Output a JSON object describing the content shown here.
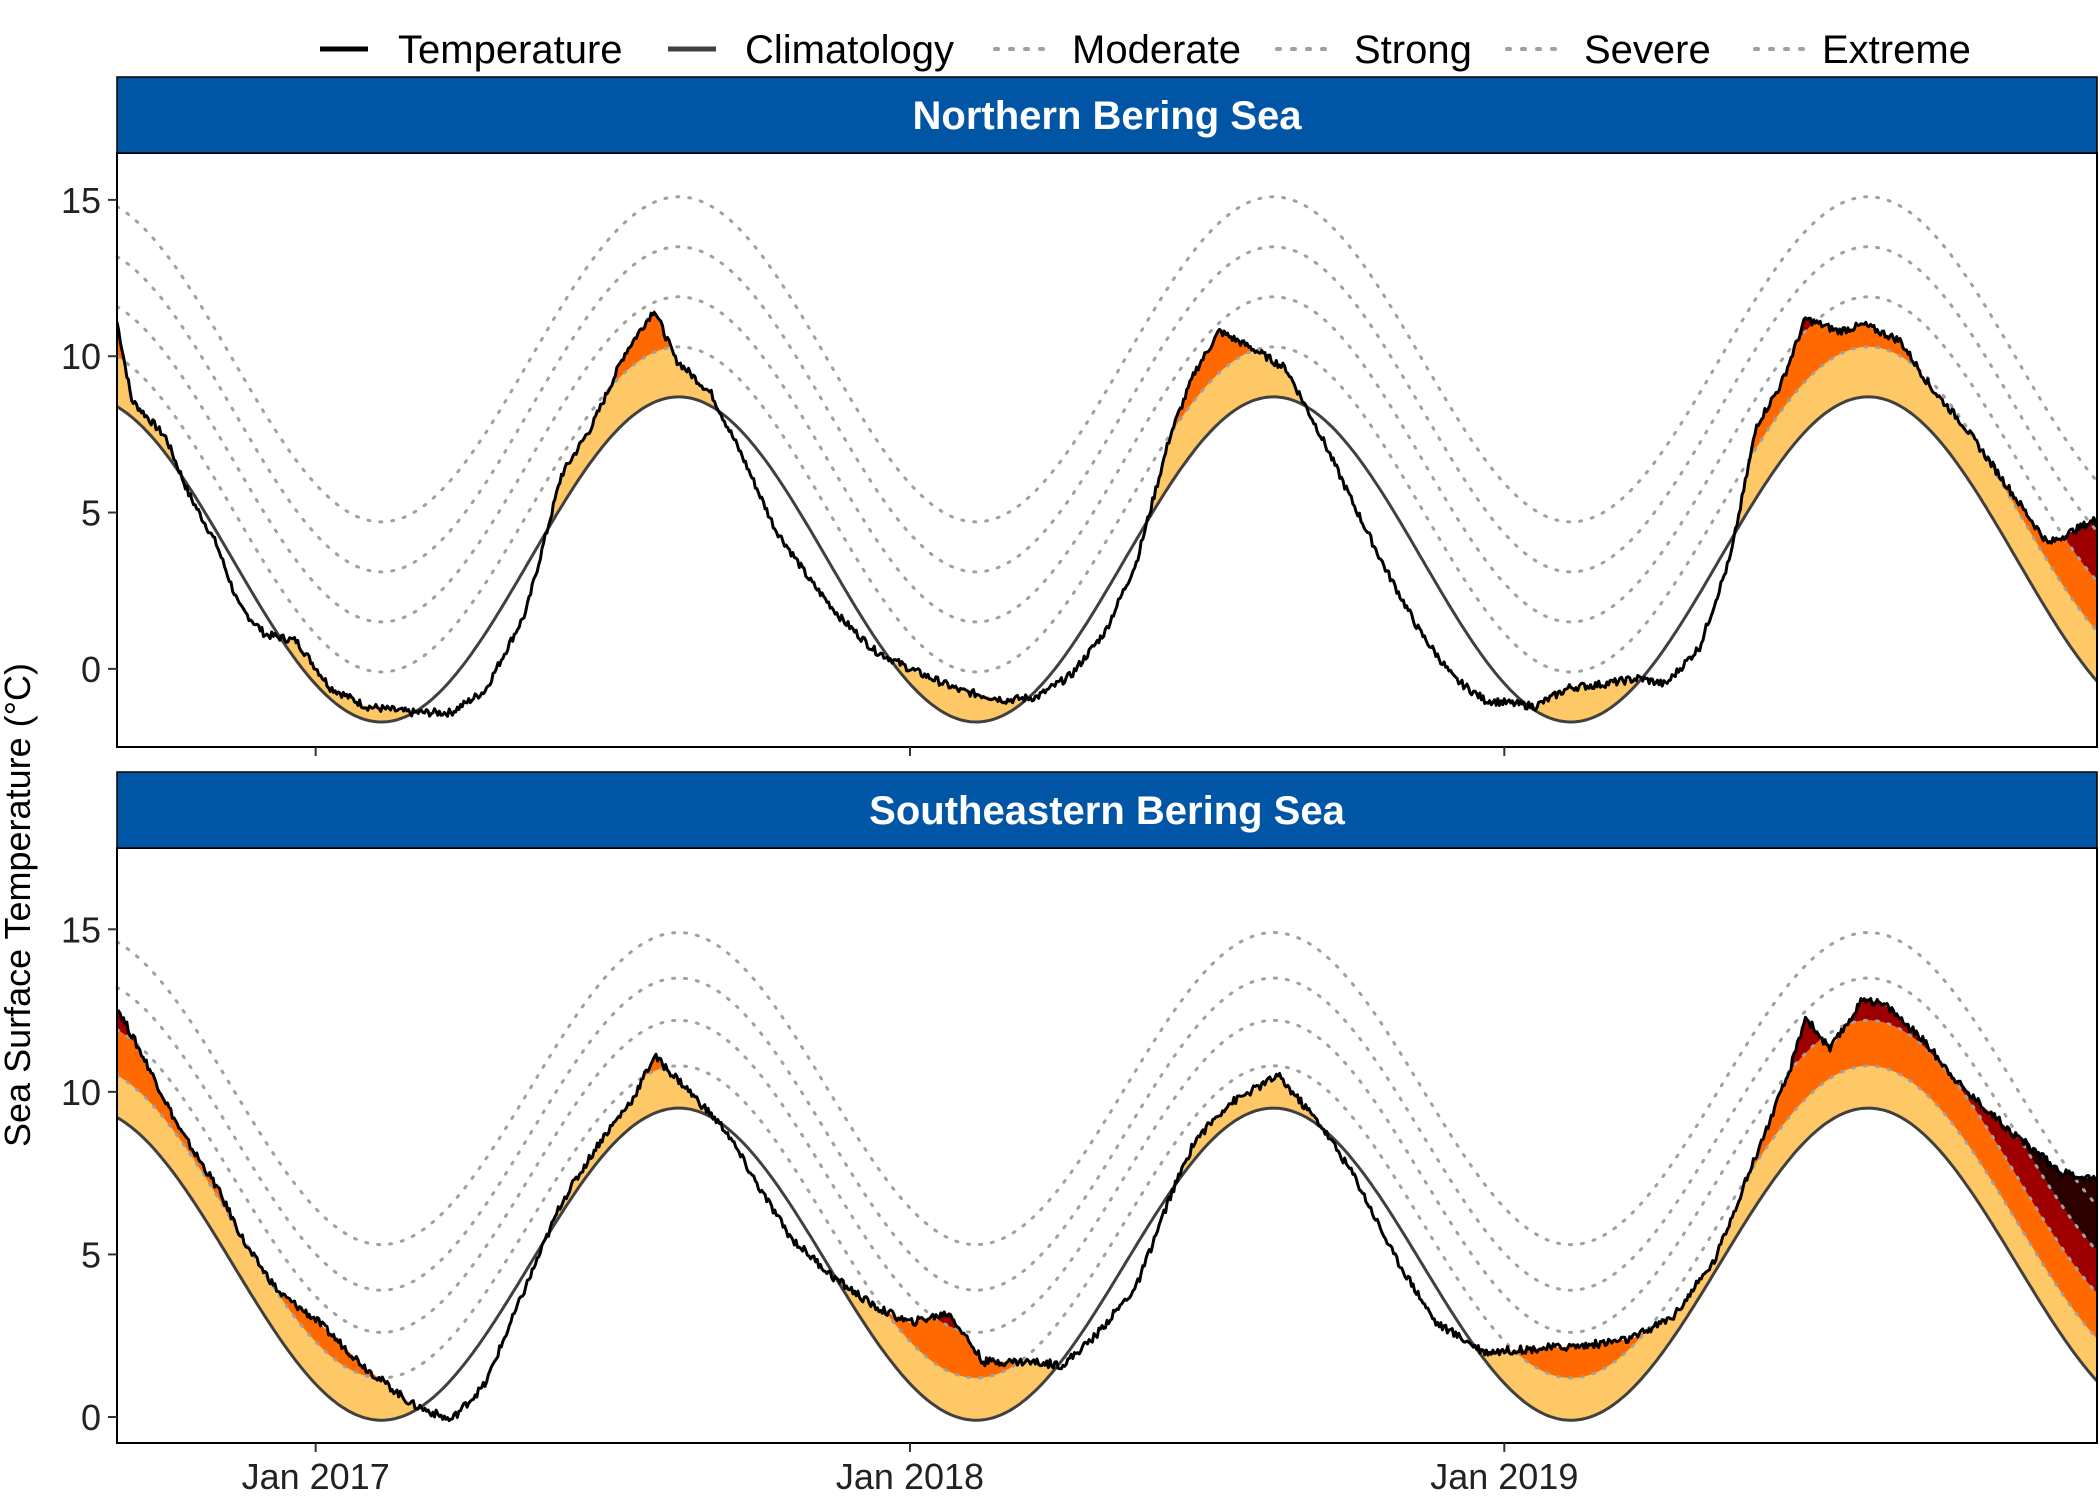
{
  "chart_data": {
    "type": "line",
    "ylabel": "Sea Surface Temperature (°C)",
    "x_ticks": [
      "Jan 2017",
      "Jan 2018",
      "Jan 2019"
    ],
    "x_tick_dates": [
      "2017-01-01",
      "2018-01-01",
      "2019-01-01"
    ],
    "xlim": [
      "2016-09-01",
      "2019-12-31"
    ],
    "y_ticks": [
      0,
      5,
      10,
      15
    ],
    "legend": {
      "position": "top",
      "entries": [
        {
          "label": "Temperature",
          "style": "solid",
          "color": "#000000"
        },
        {
          "label": "Climatology",
          "style": "solid",
          "color": "#404040"
        },
        {
          "label": "Moderate",
          "style": "dotted",
          "color": "#a0a0a0"
        },
        {
          "label": "Strong",
          "style": "dotted",
          "color": "#a0a0a0"
        },
        {
          "label": "Severe",
          "style": "dotted",
          "color": "#a0a0a0"
        },
        {
          "label": "Extreme",
          "style": "dotted",
          "color": "#a0a0a0"
        }
      ]
    },
    "category_fill_colors": {
      "Moderate": "#ffc866",
      "Strong": "#ff6900",
      "Severe": "#9e0000",
      "Extreme": "#2d0000"
    },
    "strip_color": "#0055a5",
    "panels": [
      {
        "title": "Northern Bering Sea",
        "ylim": [
          -2.5,
          16.5
        ],
        "climatology": {
          "min": -1.7,
          "max": 8.7,
          "trough_date": "2017-03-25",
          "peak_date": "2017-08-12"
        },
        "threshold_increments": {
          "Moderate": 1.6,
          "Strong": 3.2,
          "Severe": 4.8,
          "Extreme": 6.4
        },
        "temperature": [
          [
            "2016-09-01",
            11.1
          ],
          [
            "2016-09-10",
            8.6
          ],
          [
            "2016-10-01",
            7.4
          ],
          [
            "2016-10-15",
            5.6
          ],
          [
            "2016-11-01",
            4.0
          ],
          [
            "2016-11-15",
            2.0
          ],
          [
            "2016-12-01",
            1.1
          ],
          [
            "2016-12-20",
            0.9
          ],
          [
            "2017-01-10",
            -0.6
          ],
          [
            "2017-02-01",
            -1.2
          ],
          [
            "2017-03-01",
            -1.4
          ],
          [
            "2017-03-25",
            -1.4
          ],
          [
            "2017-04-15",
            -0.7
          ],
          [
            "2017-05-10",
            1.8
          ],
          [
            "2017-06-01",
            6.2
          ],
          [
            "2017-06-20",
            7.8
          ],
          [
            "2017-07-10",
            10.1
          ],
          [
            "2017-07-28",
            11.5
          ],
          [
            "2017-08-10",
            9.9
          ],
          [
            "2017-09-01",
            8.8
          ],
          [
            "2017-09-20",
            6.8
          ],
          [
            "2017-10-10",
            4.5
          ],
          [
            "2017-11-01",
            2.8
          ],
          [
            "2017-11-20",
            1.6
          ],
          [
            "2017-12-10",
            0.6
          ],
          [
            "2018-01-01",
            0.0
          ],
          [
            "2018-02-01",
            -0.7
          ],
          [
            "2018-03-01",
            -1.0
          ],
          [
            "2018-03-20",
            -0.9
          ],
          [
            "2018-04-10",
            -0.2
          ],
          [
            "2018-05-01",
            1.2
          ],
          [
            "2018-05-20",
            3.4
          ],
          [
            "2018-06-10",
            7.5
          ],
          [
            "2018-06-25",
            9.5
          ],
          [
            "2018-07-10",
            10.8
          ],
          [
            "2018-08-01",
            10.2
          ],
          [
            "2018-08-20",
            9.6
          ],
          [
            "2018-09-10",
            7.5
          ],
          [
            "2018-10-01",
            5.2
          ],
          [
            "2018-10-20",
            3.2
          ],
          [
            "2018-11-10",
            1.2
          ],
          [
            "2018-12-01",
            -0.3
          ],
          [
            "2018-12-20",
            -1.0
          ],
          [
            "2019-01-20",
            -1.2
          ],
          [
            "2019-02-10",
            -0.6
          ],
          [
            "2019-03-01",
            -0.5
          ],
          [
            "2019-03-25",
            -0.3
          ],
          [
            "2019-04-10",
            -0.5
          ],
          [
            "2019-05-01",
            0.7
          ],
          [
            "2019-05-20",
            3.6
          ],
          [
            "2019-06-05",
            7.8
          ],
          [
            "2019-06-20",
            9.1
          ],
          [
            "2019-07-05",
            11.2
          ],
          [
            "2019-07-25",
            10.8
          ],
          [
            "2019-08-10",
            11.0
          ],
          [
            "2019-09-01",
            10.5
          ],
          [
            "2019-09-20",
            9.0
          ],
          [
            "2019-10-10",
            7.8
          ],
          [
            "2019-11-01",
            6.2
          ],
          [
            "2019-12-01",
            4.0
          ],
          [
            "2019-12-31",
            4.8
          ]
        ]
      },
      {
        "title": "Southeastern Bering Sea",
        "ylim": [
          -0.8,
          17.5
        ],
        "climatology": {
          "min": -0.1,
          "max": 9.5,
          "trough_date": "2017-03-25",
          "peak_date": "2017-08-12"
        },
        "threshold_increments": {
          "Moderate": 1.3,
          "Strong": 2.7,
          "Severe": 4.0,
          "Extreme": 5.4
        },
        "temperature": [
          [
            "2016-09-01",
            12.6
          ],
          [
            "2016-09-20",
            10.8
          ],
          [
            "2016-10-10",
            8.8
          ],
          [
            "2016-11-01",
            7.1
          ],
          [
            "2016-11-20",
            5.2
          ],
          [
            "2016-12-10",
            3.8
          ],
          [
            "2017-01-01",
            3.0
          ],
          [
            "2017-02-01",
            1.5
          ],
          [
            "2017-03-01",
            0.4
          ],
          [
            "2017-03-25",
            -0.1
          ],
          [
            "2017-04-15",
            1.0
          ],
          [
            "2017-05-10",
            4.0
          ],
          [
            "2017-06-01",
            6.6
          ],
          [
            "2017-06-25",
            8.5
          ],
          [
            "2017-07-15",
            9.8
          ],
          [
            "2017-07-28",
            11.1
          ],
          [
            "2017-08-15",
            10.2
          ],
          [
            "2017-09-10",
            8.8
          ],
          [
            "2017-10-01",
            7.0
          ],
          [
            "2017-10-20",
            5.5
          ],
          [
            "2017-11-15",
            4.3
          ],
          [
            "2017-12-10",
            3.4
          ],
          [
            "2018-01-01",
            2.9
          ],
          [
            "2018-01-25",
            3.2
          ],
          [
            "2018-02-15",
            1.7
          ],
          [
            "2018-03-15",
            1.7
          ],
          [
            "2018-04-05",
            1.6
          ],
          [
            "2018-04-25",
            2.5
          ],
          [
            "2018-05-20",
            4.0
          ],
          [
            "2018-06-10",
            6.8
          ],
          [
            "2018-06-25",
            8.5
          ],
          [
            "2018-07-15",
            9.6
          ],
          [
            "2018-08-15",
            10.5
          ],
          [
            "2018-09-10",
            9.0
          ],
          [
            "2018-10-01",
            7.4
          ],
          [
            "2018-10-25",
            5.0
          ],
          [
            "2018-11-20",
            2.9
          ],
          [
            "2018-12-20",
            2.0
          ],
          [
            "2019-01-20",
            2.1
          ],
          [
            "2019-02-20",
            2.2
          ],
          [
            "2019-03-20",
            2.4
          ],
          [
            "2019-04-15",
            3.1
          ],
          [
            "2019-05-10",
            4.8
          ],
          [
            "2019-06-01",
            7.6
          ],
          [
            "2019-06-25",
            10.6
          ],
          [
            "2019-07-05",
            12.3
          ],
          [
            "2019-07-20",
            11.3
          ],
          [
            "2019-08-10",
            12.9
          ],
          [
            "2019-08-25",
            12.6
          ],
          [
            "2019-09-15",
            11.6
          ],
          [
            "2019-10-10",
            10.1
          ],
          [
            "2019-11-10",
            8.7
          ],
          [
            "2019-12-10",
            7.5
          ],
          [
            "2019-12-31",
            7.3
          ]
        ]
      }
    ]
  }
}
